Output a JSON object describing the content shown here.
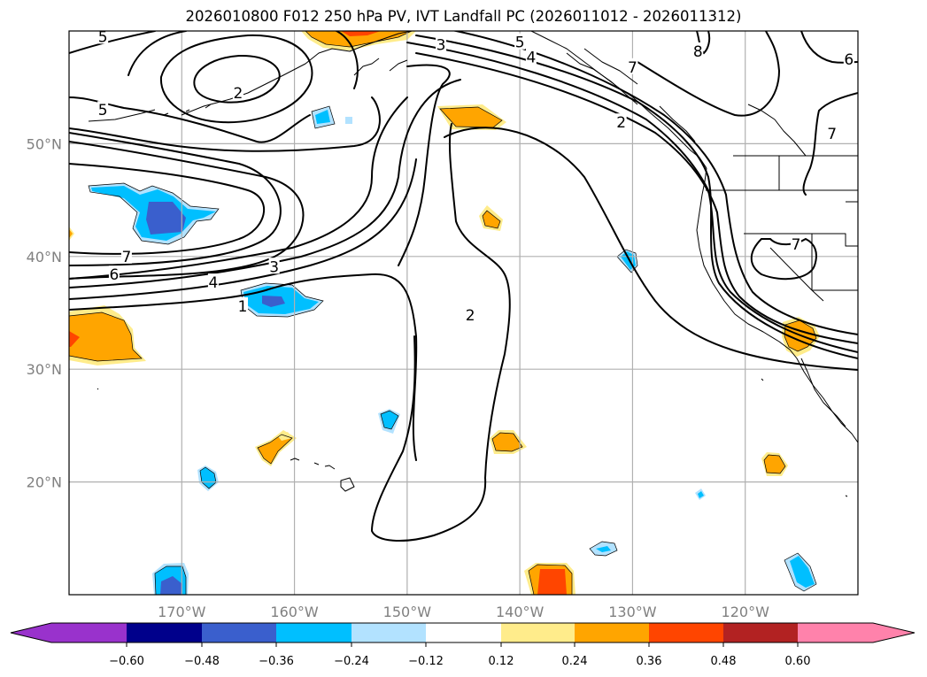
{
  "title": "2026010800 F012 250 hPa PV, IVT Landfall PC (2026011012 - 2026011312)",
  "map": {
    "projection": "PlateCarree",
    "extent": {
      "lon_min": -180,
      "lon_max": -110,
      "lat_min": 10,
      "lat_max": 60
    },
    "gridlines": true,
    "coastlines": true,
    "borders": [
      "US-Canada border",
      "US state lines",
      "US-Mexico border"
    ],
    "lon_ticks": [
      {
        "value": -170,
        "label": "170°W"
      },
      {
        "value": -160,
        "label": "160°W"
      },
      {
        "value": -150,
        "label": "150°W"
      },
      {
        "value": -140,
        "label": "140°W"
      },
      {
        "value": -130,
        "label": "130°W"
      },
      {
        "value": -120,
        "label": "120°W"
      }
    ],
    "lat_ticks": [
      {
        "value": 50,
        "label": "50°N"
      },
      {
        "value": 40,
        "label": "40°N"
      },
      {
        "value": 30,
        "label": "30°N"
      },
      {
        "value": 20,
        "label": "20°N"
      }
    ]
  },
  "colorbar": {
    "extend": "both",
    "ticks": [
      "−0.60",
      "−0.48",
      "−0.36",
      "−0.24",
      "−0.12",
      "0.12",
      "0.24",
      "0.36",
      "0.48",
      "0.60"
    ],
    "colors": [
      "#9932CC",
      "#00008B",
      "#3A5FCD",
      "#00BFFF",
      "#B2E2FF",
      "#FFFFFF",
      "#FFEC8B",
      "#FFA500",
      "#FF4500",
      "#B22222",
      "#FF82AB"
    ]
  },
  "chart_data": {
    "type": "heatmap",
    "title": "2026010800 F012 250 hPa PV, IVT Landfall PC (2026011012 - 2026011312)",
    "fill_variable": "IVT Landfall PC (correlation-like, filled)",
    "contour_variable": "250 hPa PV (PVU, black contours)",
    "levels": [
      -0.6,
      -0.48,
      -0.36,
      -0.24,
      -0.12,
      0.12,
      0.24,
      0.36,
      0.48,
      0.6
    ],
    "contour_labels": [
      {
        "text": "5",
        "lon": -177,
        "lat": 59.5
      },
      {
        "text": "5",
        "lon": -177,
        "lat": 53
      },
      {
        "text": "2",
        "lon": -165,
        "lat": 54.5
      },
      {
        "text": "3",
        "lon": -147,
        "lat": 58.8
      },
      {
        "text": "5",
        "lon": -140,
        "lat": 59
      },
      {
        "text": "4",
        "lon": -139,
        "lat": 57.7
      },
      {
        "text": "7",
        "lon": -130,
        "lat": 56.8
      },
      {
        "text": "2",
        "lon": -131,
        "lat": 51.9
      },
      {
        "text": "8",
        "lon": -124.2,
        "lat": 58.2
      },
      {
        "text": "6",
        "lon": -110.8,
        "lat": 57.5
      },
      {
        "text": "7",
        "lon": -112.3,
        "lat": 50.9
      },
      {
        "text": "7",
        "lon": -174.9,
        "lat": 40
      },
      {
        "text": "6",
        "lon": -176,
        "lat": 38.4
      },
      {
        "text": "4",
        "lon": -167.2,
        "lat": 37.7
      },
      {
        "text": "3",
        "lon": -161.8,
        "lat": 39.1
      },
      {
        "text": "1",
        "lon": -164.6,
        "lat": 35.6
      },
      {
        "text": "2",
        "lon": -144.4,
        "lat": 34.8
      },
      {
        "text": "7",
        "lon": -115.5,
        "lat": 41.1
      }
    ],
    "fill_features": [
      {
        "sign": "positive",
        "max_level": 0.36,
        "lon": -179,
        "lat": 33.5,
        "desc": "large orange area west edge, red core"
      },
      {
        "sign": "positive",
        "max_level": 0.36,
        "lon": -155,
        "lat": 59.5,
        "desc": "orange/red along Alaska Peninsula top edge"
      },
      {
        "sign": "negative",
        "min_level": -0.48,
        "lon": -170,
        "lat": 44,
        "desc": "blue blob with royal blue core"
      },
      {
        "sign": "negative",
        "min_level": -0.48,
        "lon": -158,
        "lat": 35.8,
        "desc": "blue blob with royal blue core"
      },
      {
        "sign": "negative",
        "min_level": -0.24,
        "lon": -156.5,
        "lat": 52.3,
        "desc": "small blue"
      },
      {
        "sign": "positive",
        "min_level": 0.24,
        "lon": -144,
        "lat": 52.6,
        "desc": "orange"
      },
      {
        "sign": "positive",
        "min_level": 0.24,
        "lon": -142.7,
        "lat": 43.6,
        "desc": "small orange"
      },
      {
        "sign": "negative",
        "min_level": -0.24,
        "lon": -130.3,
        "lat": 39.8,
        "desc": "small blue"
      },
      {
        "sign": "positive",
        "min_level": 0.24,
        "lon": -117,
        "lat": 32.5,
        "desc": "orange near Southern California"
      },
      {
        "sign": "negative",
        "min_level": -0.24,
        "lon": -152,
        "lat": 25.5,
        "desc": "small blue"
      },
      {
        "sign": "positive",
        "min_level": 0.24,
        "lon": -162,
        "lat": 23,
        "desc": "orange/yellow"
      },
      {
        "sign": "positive",
        "min_level": 0.24,
        "lon": -141,
        "lat": 23.3,
        "desc": "orange"
      },
      {
        "sign": "negative",
        "min_level": -0.24,
        "lon": -168.7,
        "lat": 20.2,
        "desc": "small blue"
      },
      {
        "sign": "positive",
        "min_level": 0.24,
        "lon": -117.5,
        "lat": 21.5,
        "desc": "orange"
      },
      {
        "sign": "negative",
        "min_level": -0.12,
        "lon": -124,
        "lat": 18.8,
        "desc": "tiny light blue"
      },
      {
        "sign": "negative",
        "min_level": -0.48,
        "lon": -171,
        "lat": 11.5,
        "desc": "blue with royal blue core"
      },
      {
        "sign": "positive",
        "max_level": 0.48,
        "lon": -136,
        "lat": 11.5,
        "desc": "red-orange core"
      },
      {
        "sign": "negative",
        "min_level": -0.24,
        "lon": -133,
        "lat": 14.2,
        "desc": "small light blue"
      },
      {
        "sign": "negative",
        "min_level": -0.36,
        "lon": -114.5,
        "lat": 12.5,
        "desc": "blue"
      }
    ]
  }
}
